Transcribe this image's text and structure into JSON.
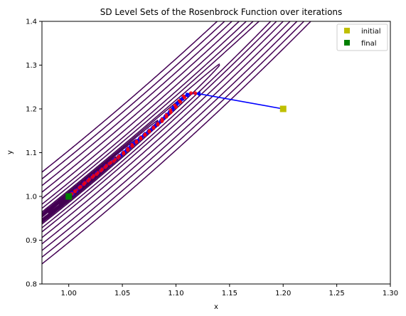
{
  "chart_data": {
    "type": "line",
    "title": "SD Level Sets of the Rosenbrock Function over iterations",
    "xlabel": "x",
    "ylabel": "y",
    "xlim": [
      0.975,
      1.3
    ],
    "ylim": [
      0.8,
      1.4
    ],
    "xticks": [
      "1.00",
      "1.05",
      "1.10",
      "1.15",
      "1.20",
      "1.25",
      "1.30"
    ],
    "xtick_values": [
      1.0,
      1.05,
      1.1,
      1.15,
      1.2,
      1.25,
      1.3
    ],
    "yticks": [
      "0.8",
      "0.9",
      "1.0",
      "1.1",
      "1.2",
      "1.3",
      "1.4"
    ],
    "ytick_values": [
      0.8,
      0.9,
      1.0,
      1.1,
      1.2,
      1.3,
      1.4
    ],
    "grid": false,
    "legend_position": "top-right",
    "contour_levels": [
      0.0001,
      0.0004,
      0.001,
      0.002,
      0.004,
      0.007,
      0.012,
      0.02,
      0.05,
      0.1,
      0.2,
      0.35,
      0.55,
      0.8,
      1.1
    ],
    "contour_color": "#440154",
    "path_color": "#0000ff",
    "point_color": "#ff0000",
    "initial": {
      "name": "initial",
      "x": 1.2,
      "y": 1.2,
      "color": "#bfbf00"
    },
    "final": {
      "name": "final",
      "x": 1.0,
      "y": 1.0,
      "color": "#008000"
    },
    "path": [
      [
        1.2,
        1.2
      ],
      [
        1.118,
        1.236
      ],
      [
        1.107,
        1.229
      ],
      [
        1.114,
        1.236
      ],
      [
        1.103,
        1.218
      ],
      [
        1.108,
        1.226
      ],
      [
        1.099,
        1.208
      ],
      [
        1.104,
        1.216
      ],
      [
        1.095,
        1.197
      ],
      [
        1.1,
        1.204
      ],
      [
        1.091,
        1.186
      ],
      [
        1.095,
        1.192
      ],
      [
        1.087,
        1.176
      ],
      [
        1.091,
        1.182
      ],
      [
        1.083,
        1.166
      ],
      [
        1.087,
        1.172
      ],
      [
        1.079,
        1.158
      ],
      [
        1.083,
        1.164
      ],
      [
        1.075,
        1.15
      ],
      [
        1.079,
        1.156
      ],
      [
        1.071,
        1.142
      ],
      [
        1.075,
        1.148
      ],
      [
        1.067,
        1.134
      ],
      [
        1.071,
        1.14
      ],
      [
        1.063,
        1.126
      ],
      [
        1.067,
        1.132
      ],
      [
        1.059,
        1.118
      ],
      [
        1.063,
        1.124
      ],
      [
        1.055,
        1.109
      ],
      [
        1.059,
        1.115
      ],
      [
        1.051,
        1.1
      ],
      [
        1.055,
        1.106
      ],
      [
        1.047,
        1.092
      ],
      [
        1.051,
        1.098
      ],
      [
        1.043,
        1.084
      ],
      [
        1.046,
        1.089
      ],
      [
        1.039,
        1.077
      ],
      [
        1.042,
        1.081
      ],
      [
        1.035,
        1.07
      ],
      [
        1.038,
        1.075
      ],
      [
        1.031,
        1.062
      ],
      [
        1.034,
        1.067
      ],
      [
        1.027,
        1.054
      ],
      [
        1.03,
        1.059
      ],
      [
        1.023,
        1.047
      ],
      [
        1.026,
        1.051
      ],
      [
        1.019,
        1.039
      ],
      [
        1.022,
        1.044
      ],
      [
        1.015,
        1.031
      ],
      [
        1.018,
        1.036
      ],
      [
        1.011,
        1.022
      ],
      [
        1.014,
        1.028
      ],
      [
        1.007,
        1.014
      ],
      [
        1.01,
        1.02
      ],
      [
        1.004,
        1.007
      ],
      [
        1.006,
        1.012
      ],
      [
        1.001,
        1.002
      ],
      [
        1.003,
        1.006
      ],
      [
        1.0,
        1.0
      ]
    ]
  }
}
